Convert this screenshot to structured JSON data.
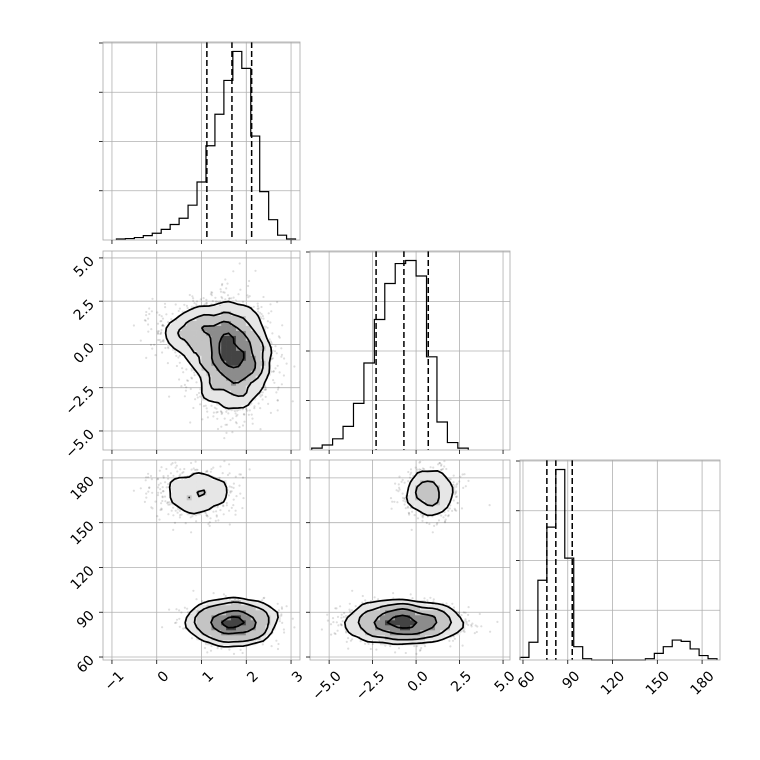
{
  "chart_data": {
    "type": "corner",
    "title": "",
    "parameters": [
      {
        "range": [
          -1.2,
          3.2
        ],
        "ticks": [
          -1,
          0,
          1,
          2,
          3
        ],
        "tick_labels": [
          "−1",
          "0",
          "1",
          "2",
          "3"
        ]
      },
      {
        "range": [
          -6.1,
          5.4
        ],
        "ticks": [
          -5,
          -2.5,
          0,
          2.5,
          5
        ],
        "tick_labels": [
          "−5.0",
          "−2.5",
          "0.0",
          "2.5",
          "5.0"
        ]
      },
      {
        "range": [
          58,
          192
        ],
        "ticks": [
          60,
          90,
          120,
          150,
          180
        ],
        "tick_labels": [
          "60",
          "90",
          "120",
          "150",
          "180"
        ]
      }
    ],
    "grid": true,
    "histograms": [
      {
        "parameter": 0,
        "bin_edges": [
          -0.9,
          -0.7,
          -0.5,
          -0.3,
          -0.1,
          0.1,
          0.3,
          0.5,
          0.7,
          0.9,
          1.1,
          1.3,
          1.5,
          1.7,
          1.9,
          2.1,
          2.3,
          2.5,
          2.7,
          2.9,
          3.1
        ],
        "counts": [
          2,
          3,
          5,
          9,
          14,
          22,
          32,
          45,
          72,
          120,
          195,
          260,
          330,
          390,
          355,
          215,
          100,
          42,
          10,
          2
        ],
        "quantiles": [
          1.12,
          1.68,
          2.12
        ]
      },
      {
        "parameter": 1,
        "bin_edges": [
          -6.0,
          -5.4,
          -4.8,
          -4.2,
          -3.6,
          -3.0,
          -2.4,
          -1.8,
          -1.2,
          -0.6,
          0.0,
          0.6,
          1.2,
          1.8,
          2.4,
          3.0
        ],
        "counts": [
          3,
          8,
          18,
          38,
          75,
          140,
          210,
          268,
          300,
          305,
          280,
          150,
          45,
          12,
          3
        ],
        "quantiles": [
          -2.3,
          -0.7,
          0.7
        ]
      },
      {
        "parameter": 2,
        "bin_edges": [
          58,
          64,
          70,
          76,
          82,
          88,
          94,
          100,
          106,
          112,
          118,
          124,
          130,
          136,
          142,
          148,
          154,
          160,
          166,
          172,
          178,
          184,
          190
        ],
        "counts": [
          6,
          40,
          180,
          300,
          430,
          230,
          30,
          3,
          0,
          0,
          0,
          0,
          0,
          0,
          3,
          15,
          30,
          45,
          42,
          25,
          10,
          3
        ],
        "quantiles": [
          76,
          82,
          93
        ]
      }
    ],
    "samples": {
      "description_keys": [
        "clusters"
      ],
      "clusters": [
        {
          "weight": 0.8,
          "mean": [
            1.7,
            -0.7,
            83
          ],
          "std": [
            0.42,
            1.5,
            6
          ]
        },
        {
          "weight": 0.2,
          "mean": [
            0.85,
            0.8,
            170
          ],
          "std": [
            0.45,
            0.8,
            9
          ]
        }
      ]
    },
    "panels_2d": [
      {
        "x_param": 0,
        "y_param": 1
      },
      {
        "x_param": 0,
        "y_param": 2
      },
      {
        "x_param": 1,
        "y_param": 2
      }
    ]
  }
}
